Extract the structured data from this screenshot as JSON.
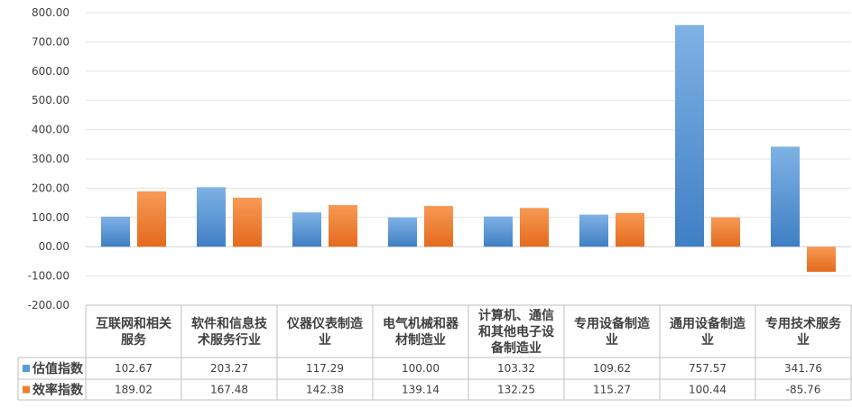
{
  "chart_data": {
    "type": "bar",
    "title": "",
    "xlabel": "",
    "ylabel": "",
    "ylim": [
      -200,
      800
    ],
    "yticks": [
      "800.00",
      "700.00",
      "600.00",
      "500.00",
      "400.00",
      "300.00",
      "200.00",
      "100.00",
      "00.00",
      "-100.00",
      "-200.00"
    ],
    "ytick_values": [
      800,
      700,
      600,
      500,
      400,
      300,
      200,
      100,
      0,
      -100,
      -200
    ],
    "grid": true,
    "legend": "data-table-left",
    "categories": [
      [
        "互联网和相关",
        "服务"
      ],
      [
        "软件和信息技",
        "术服务行业"
      ],
      [
        "仪器仪表制造",
        "业"
      ],
      [
        "电气机械和器",
        "材制造业"
      ],
      [
        "计算机、通信",
        "和其他电子设",
        "备制造业"
      ],
      [
        "专用设备制造",
        "业"
      ],
      [
        "通用设备制造",
        "业"
      ],
      [
        "专用技术服务",
        "业"
      ]
    ],
    "series": [
      {
        "name": "估值指数",
        "color": "#5B9BD5",
        "values": [
          102.67,
          203.27,
          117.29,
          100.0,
          103.32,
          109.62,
          757.57,
          341.76
        ],
        "labels": [
          "102.67",
          "203.27",
          "117.29",
          "100.00",
          "103.32",
          "109.62",
          "757.57",
          "341.76"
        ]
      },
      {
        "name": "效率指数",
        "color": "#ED7D31",
        "values": [
          189.02,
          167.48,
          142.38,
          139.14,
          132.25,
          115.27,
          100.44,
          -85.76
        ],
        "labels": [
          "189.02",
          "167.48",
          "142.38",
          "139.14",
          "132.25",
          "115.27",
          "100.44",
          "-85.76"
        ]
      }
    ]
  }
}
